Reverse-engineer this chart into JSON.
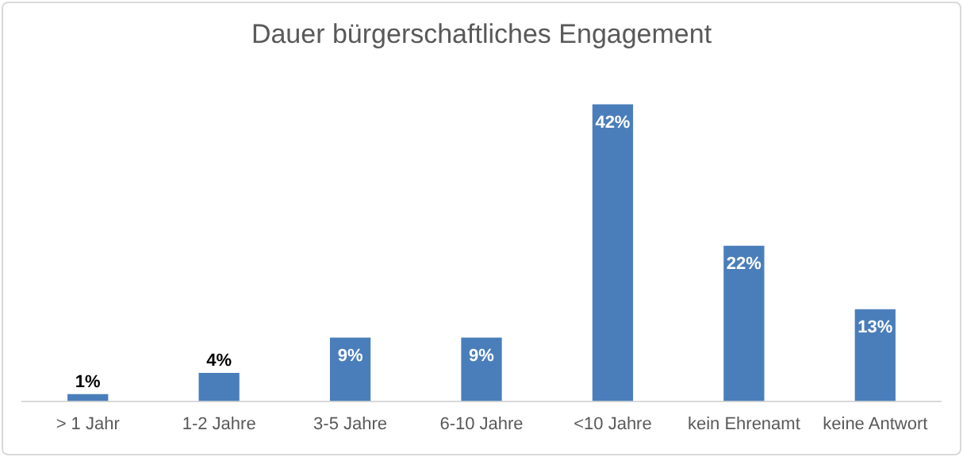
{
  "chart_data": {
    "type": "bar",
    "title": "Dauer bürgerschaftliches Engagement",
    "categories": [
      "> 1 Jahr",
      "1-2 Jahre",
      "3-5 Jahre",
      "6-10 Jahre",
      "<10 Jahre",
      "kein Ehrenamt",
      "keine Antwort"
    ],
    "values": [
      1,
      4,
      9,
      9,
      42,
      22,
      13
    ],
    "value_labels": [
      "1%",
      "4%",
      "9%",
      "9%",
      "42%",
      "22%",
      "13%"
    ],
    "color": "#4a7ebb",
    "grid": false,
    "legend": false
  }
}
